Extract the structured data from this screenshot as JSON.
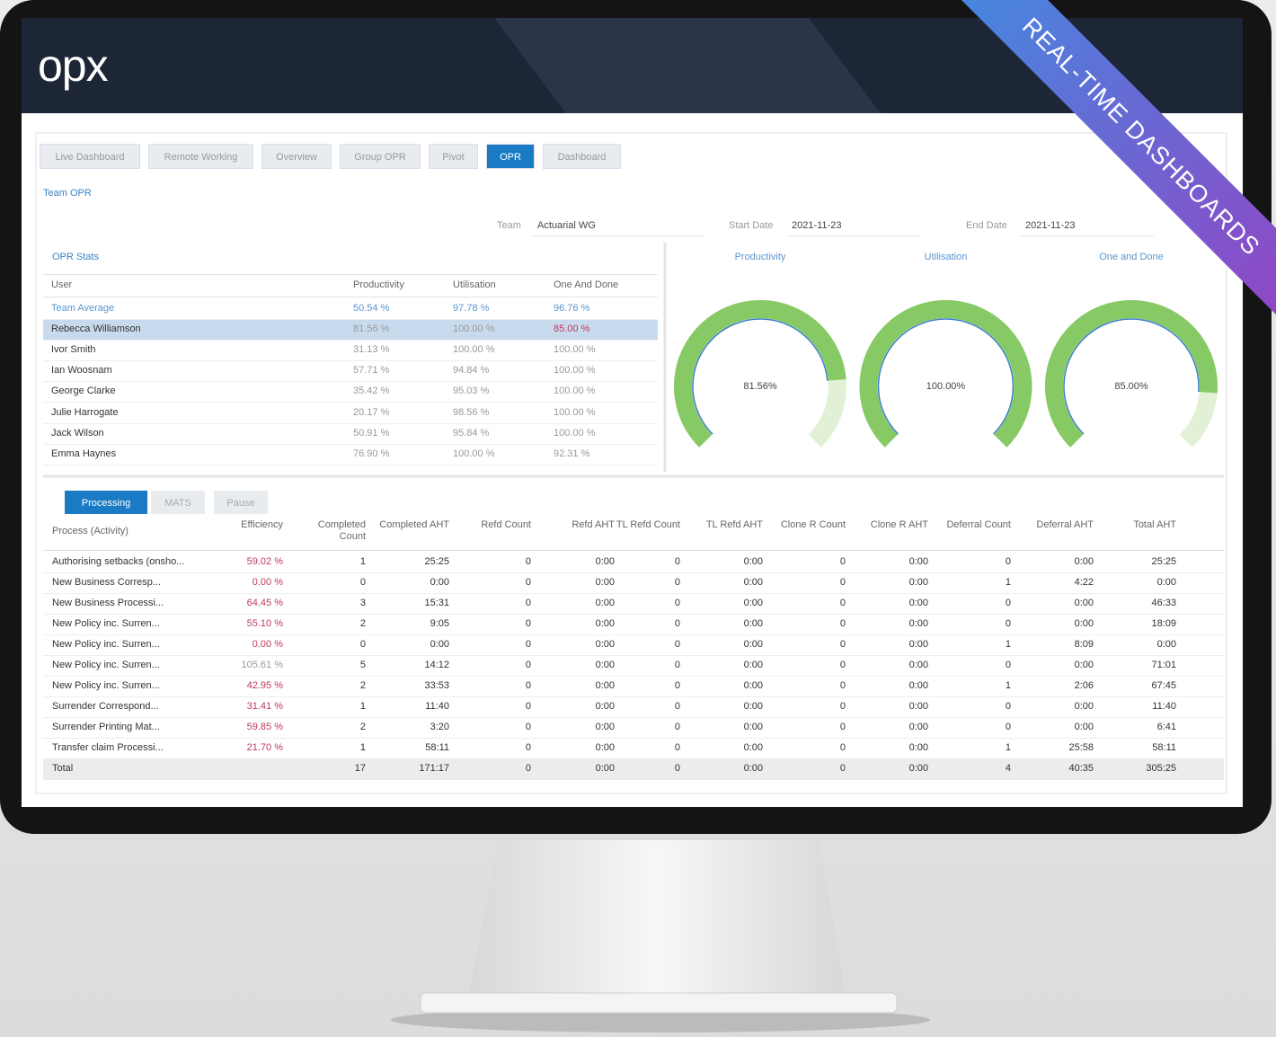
{
  "brand": "opx",
  "banner": "REAL-TIME DASHBOARDS",
  "tabs": {
    "items": [
      "Live Dashboard",
      "Remote Working",
      "Overview",
      "Group OPR",
      "Pivot",
      "OPR",
      "Dashboard"
    ],
    "active": 5
  },
  "breadcrumb": "Team OPR",
  "filters": {
    "team_label": "Team",
    "team": "Actuarial WG",
    "start_label": "Start Date",
    "start": "2021-11-23",
    "end_label": "End Date",
    "end": "2021-11-23"
  },
  "opr_stats": {
    "title": "OPR Stats",
    "columns": [
      "User",
      "Productivity",
      "Utilisation",
      "One And Done"
    ],
    "selected": 1,
    "rows": [
      [
        "Team Average",
        "50.54 %",
        "97.78 %",
        "96.76 %"
      ],
      [
        "Rebecca Williamson",
        "81.56 %",
        "100.00 %",
        "85.00 %"
      ],
      [
        "Ivor Smith",
        "31.13 %",
        "100.00 %",
        "100.00 %"
      ],
      [
        "Ian Woosnam",
        "57.71 %",
        "94.84 %",
        "100.00 %"
      ],
      [
        "George Clarke",
        "35.42 %",
        "95.03 %",
        "100.00 %"
      ],
      [
        "Julie Harrogate",
        "20.17 %",
        "98.56 %",
        "100.00 %"
      ],
      [
        "Jack Wilson",
        "50.91 %",
        "95.84 %",
        "100.00 %"
      ],
      [
        "Emma Haynes",
        "76.90 %",
        "100.00 %",
        "92.31 %"
      ]
    ]
  },
  "gauges": {
    "scale": [
      0,
      100
    ],
    "items": [
      {
        "title": "Productivity",
        "value": 81.56,
        "value_label": "81.56%"
      },
      {
        "title": "Utilisation",
        "value": 100,
        "value_label": "100.00%"
      },
      {
        "title": "One and Done",
        "value": 85,
        "value_label": "85.00%"
      }
    ]
  },
  "process_tabs": {
    "items": [
      "Processing",
      "MATS",
      "Pause"
    ],
    "active": 0
  },
  "process_table": {
    "columns": [
      "Process (Activity)",
      "Efficiency",
      "Completed Count",
      "Completed AHT",
      "Refd Count",
      "Refd AHT",
      "TL Refd Count",
      "TL Refd AHT",
      "Clone R Count",
      "Clone R AHT",
      "Deferral Count",
      "Deferral AHT",
      "Total AHT"
    ],
    "rows": [
      [
        "Authorising setbacks (onsho...",
        "59.02 %",
        "1",
        "25:25",
        "0",
        "0:00",
        "0",
        "0:00",
        "0",
        "0:00",
        "0",
        "0:00",
        "25:25"
      ],
      [
        "New Business Corresp...",
        "0.00 %",
        "0",
        "0:00",
        "0",
        "0:00",
        "0",
        "0:00",
        "0",
        "0:00",
        "1",
        "4:22",
        "0:00"
      ],
      [
        "New Business Processi...",
        "64.45 %",
        "3",
        "15:31",
        "0",
        "0:00",
        "0",
        "0:00",
        "0",
        "0:00",
        "0",
        "0:00",
        "46:33"
      ],
      [
        "New Policy inc. Surren...",
        "55.10 %",
        "2",
        "9:05",
        "0",
        "0:00",
        "0",
        "0:00",
        "0",
        "0:00",
        "0",
        "0:00",
        "18:09"
      ],
      [
        "New Policy inc. Surren...",
        "0.00 %",
        "0",
        "0:00",
        "0",
        "0:00",
        "0",
        "0:00",
        "0",
        "0:00",
        "1",
        "8:09",
        "0:00"
      ],
      [
        "New Policy inc. Surren...",
        "105.61 %",
        "5",
        "14:12",
        "0",
        "0:00",
        "0",
        "0:00",
        "0",
        "0:00",
        "0",
        "0:00",
        "71:01"
      ],
      [
        "New Policy inc. Surren...",
        "42.95 %",
        "2",
        "33:53",
        "0",
        "0:00",
        "0",
        "0:00",
        "0",
        "0:00",
        "1",
        "2:06",
        "67:45"
      ],
      [
        "Surrender Correspond...",
        "31.41 %",
        "1",
        "11:40",
        "0",
        "0:00",
        "0",
        "0:00",
        "0",
        "0:00",
        "0",
        "0:00",
        "11:40"
      ],
      [
        "Surrender Printing Mat...",
        "59.85 %",
        "2",
        "3:20",
        "0",
        "0:00",
        "0",
        "0:00",
        "0",
        "0:00",
        "0",
        "0:00",
        "6:41"
      ],
      [
        "Transfer claim Processi...",
        "21.70 %",
        "1",
        "58:11",
        "0",
        "0:00",
        "0",
        "0:00",
        "0",
        "0:00",
        "1",
        "25:58",
        "58:11"
      ]
    ],
    "total": {
      "label": "Total",
      "cells": [
        "17",
        "171:17",
        "0",
        "0:00",
        "0",
        "0:00",
        "0",
        "0:00",
        "4",
        "40:35",
        "305:25"
      ]
    }
  }
}
